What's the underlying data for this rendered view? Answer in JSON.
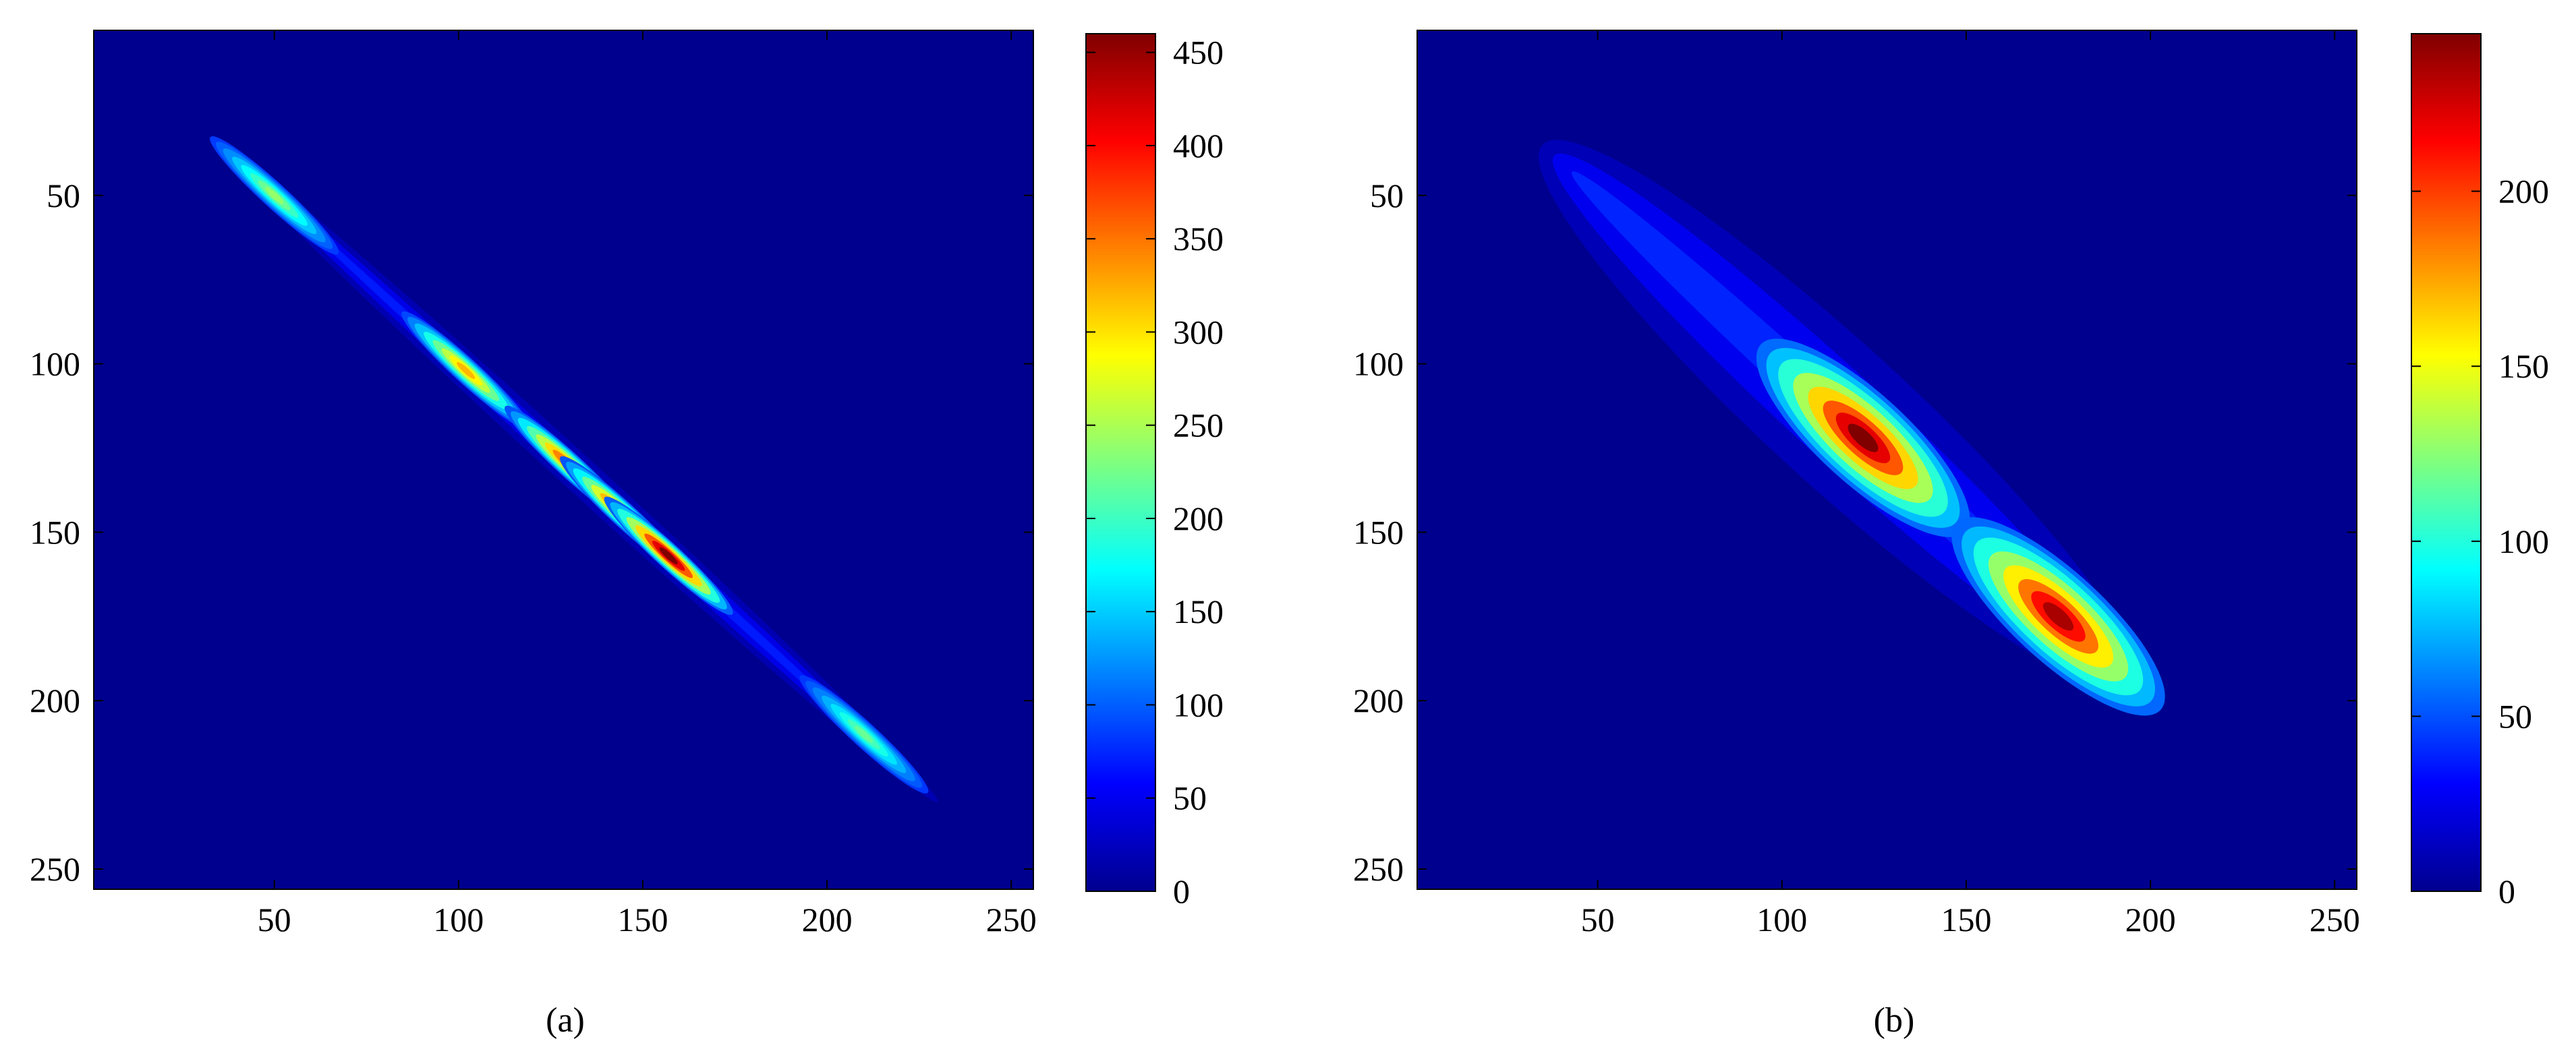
{
  "chart_data": [
    {
      "type": "heatmap",
      "panel_label": "(a)",
      "xlim": [
        1,
        256
      ],
      "ylim": [
        256,
        1
      ],
      "x_ticks": [
        50,
        100,
        150,
        200,
        250
      ],
      "y_ticks": [
        50,
        100,
        150,
        200,
        250
      ],
      "colorbar": {
        "colormap": "jet",
        "range": [
          0,
          460
        ],
        "ticks": [
          0,
          50,
          100,
          150,
          200,
          250,
          300,
          350,
          400,
          450
        ]
      },
      "density_ridge": {
        "orientation": "diagonal",
        "from": [
          35,
          35
        ],
        "to": [
          230,
          230
        ],
        "background_value": 0,
        "base_value": 70,
        "peaks": [
          {
            "x": 50,
            "y": 50,
            "value": 240
          },
          {
            "x": 102,
            "y": 102,
            "value": 320
          },
          {
            "x": 130,
            "y": 130,
            "value": 380
          },
          {
            "x": 145,
            "y": 145,
            "value": 400
          },
          {
            "x": 157,
            "y": 157,
            "value": 460
          },
          {
            "x": 210,
            "y": 210,
            "value": 220
          }
        ]
      }
    },
    {
      "type": "heatmap",
      "panel_label": "(b)",
      "xlim": [
        1,
        256
      ],
      "ylim": [
        256,
        1
      ],
      "x_ticks": [
        50,
        100,
        150,
        200,
        250
      ],
      "y_ticks": [
        50,
        100,
        150,
        200,
        250
      ],
      "colorbar": {
        "colormap": "jet",
        "range": [
          0,
          245
        ],
        "ticks": [
          0,
          50,
          100,
          150,
          200
        ]
      },
      "density_ridge": {
        "orientation": "diagonal",
        "from": [
          35,
          35
        ],
        "to": [
          195,
          195
        ],
        "background_value": 0,
        "base_value": 40,
        "peaks": [
          {
            "x": 122,
            "y": 122,
            "value": 245
          },
          {
            "x": 175,
            "y": 175,
            "value": 235
          }
        ]
      }
    }
  ]
}
